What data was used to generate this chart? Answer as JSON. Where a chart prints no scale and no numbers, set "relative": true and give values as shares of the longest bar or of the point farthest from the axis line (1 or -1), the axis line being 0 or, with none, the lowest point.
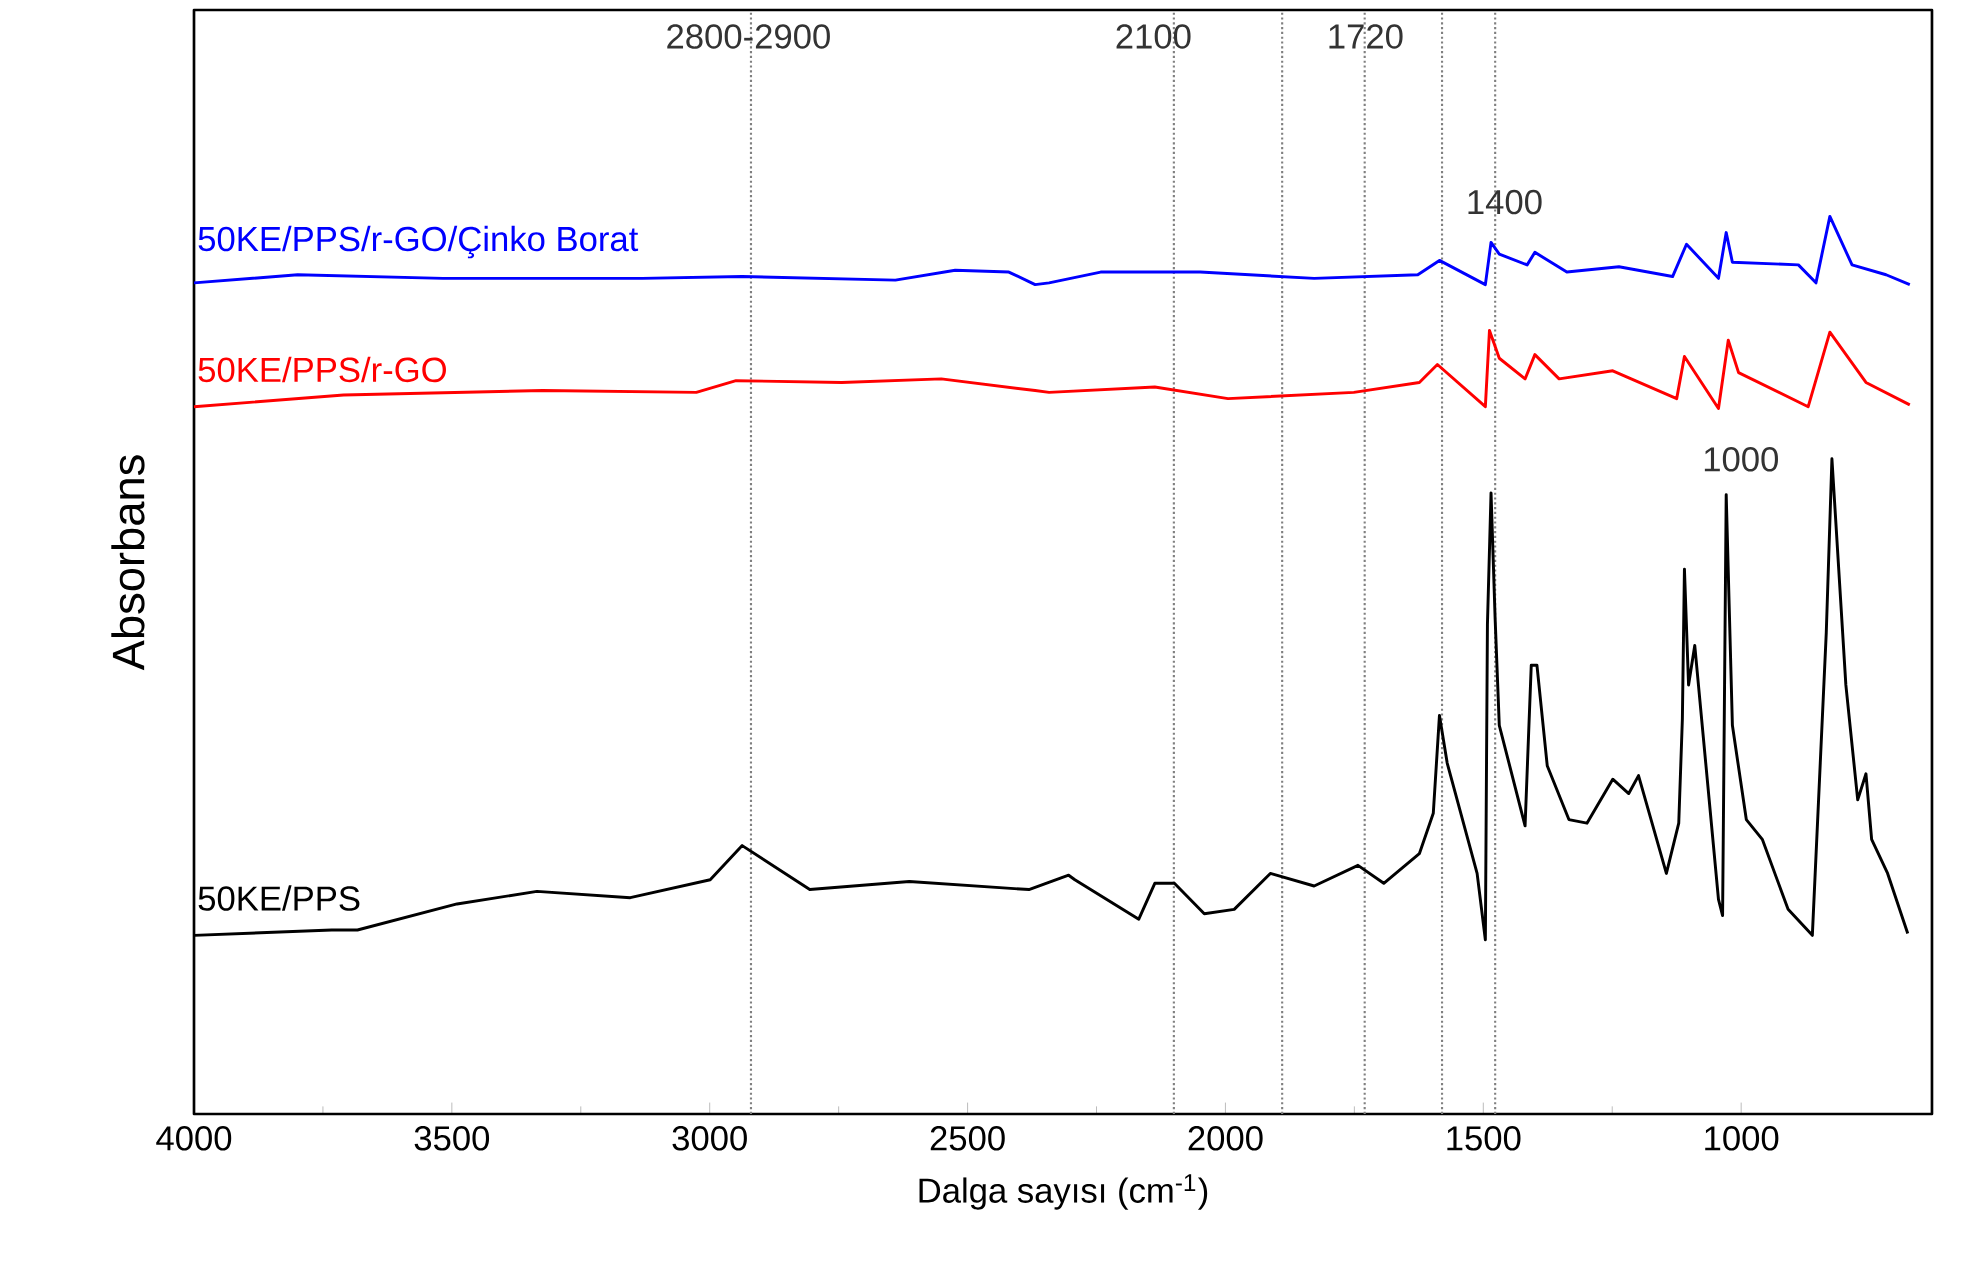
{
  "chart_data": {
    "type": "line",
    "relative": true,
    "xlabel": "Dalga sayısı (cm$^{-1}$)",
    "ylabel": "Absorbans",
    "xlim": [
      4000,
      630
    ],
    "xticks": [
      4000,
      3500,
      3000,
      2500,
      2000,
      1500,
      1000
    ],
    "legend": false,
    "grid": false,
    "line_style": "solid",
    "marker": "none",
    "series": [
      {
        "name": "50KE/PPS/r-GO/Çinko Borat",
        "color": "#0000ff",
        "x": [
          4000,
          3799,
          3517,
          3131,
          2937,
          2640,
          2524,
          2420,
          2369,
          2342,
          2242,
          2049,
          1828,
          1627,
          1585,
          1496,
          1485,
          1469,
          1415,
          1400,
          1338,
          1237,
          1133,
          1106,
          1044,
          1029,
          1017,
          889,
          855,
          828,
          785,
          719,
          673
        ],
        "values": [
          0.926,
          0.935,
          0.931,
          0.931,
          0.933,
          0.929,
          0.94,
          0.938,
          0.924,
          0.926,
          0.938,
          0.938,
          0.931,
          0.935,
          0.951,
          0.924,
          0.971,
          0.958,
          0.946,
          0.96,
          0.938,
          0.944,
          0.933,
          0.969,
          0.931,
          0.982,
          0.949,
          0.946,
          0.926,
          1.0,
          0.946,
          0.935,
          0.924
        ]
      },
      {
        "name": "50KE/PPS/r-GO",
        "color": "#ff0000",
        "x": [
          4000,
          3710,
          3324,
          3026,
          2949,
          2744,
          2551,
          2369,
          2342,
          2137,
          1995,
          1751,
          1624,
          1589,
          1496,
          1488,
          1469,
          1419,
          1400,
          1353,
          1249,
          1125,
          1110,
          1044,
          1025,
          1005,
          870,
          828,
          758,
          673
        ],
        "values": [
          0.788,
          0.801,
          0.806,
          0.804,
          0.817,
          0.815,
          0.819,
          0.806,
          0.804,
          0.81,
          0.797,
          0.804,
          0.815,
          0.835,
          0.788,
          0.873,
          0.842,
          0.819,
          0.846,
          0.819,
          0.828,
          0.797,
          0.844,
          0.786,
          0.862,
          0.826,
          0.788,
          0.871,
          0.815,
          0.79
        ]
      },
      {
        "name": "50KE/PPS",
        "color": "#000000",
        "x": [
          4000,
          3733,
          3683,
          3490,
          3335,
          3154,
          2999,
          2937,
          2806,
          2613,
          2381,
          2304,
          2292,
          2168,
          2137,
          2099,
          2041,
          1983,
          1913,
          1828,
          1743,
          1693,
          1624,
          1597,
          1585,
          1570,
          1512,
          1496,
          1492,
          1485,
          1477,
          1469,
          1419,
          1407,
          1396,
          1376,
          1334,
          1299,
          1249,
          1218,
          1199,
          1145,
          1121,
          1114,
          1110,
          1102,
          1090,
          1044,
          1036,
          1029,
          1017,
          990,
          959,
          909,
          862,
          835,
          824,
          797,
          774,
          758,
          747,
          716,
          677
        ],
        "values": [
          0.199,
          0.205,
          0.205,
          0.234,
          0.248,
          0.241,
          0.261,
          0.299,
          0.25,
          0.259,
          0.25,
          0.266,
          0.261,
          0.217,
          0.257,
          0.257,
          0.223,
          0.228,
          0.268,
          0.254,
          0.277,
          0.257,
          0.29,
          0.335,
          0.444,
          0.391,
          0.268,
          0.194,
          0.545,
          0.692,
          0.551,
          0.433,
          0.321,
          0.5,
          0.5,
          0.388,
          0.328,
          0.324,
          0.373,
          0.357,
          0.377,
          0.268,
          0.324,
          0.44,
          0.607,
          0.478,
          0.522,
          0.239,
          0.221,
          0.69,
          0.433,
          0.328,
          0.306,
          0.228,
          0.199,
          0.536,
          0.73,
          0.478,
          0.35,
          0.379,
          0.306,
          0.268,
          0.201
        ]
      }
    ],
    "ref_lines": [
      {
        "axis": "x",
        "value": 2920,
        "label": null,
        "color": "#808080",
        "line_style": "dotted"
      },
      {
        "axis": "x",
        "value": 2100,
        "label": null,
        "color": "#808080",
        "line_style": "dotted"
      },
      {
        "axis": "x",
        "value": 1890,
        "label": null,
        "color": "#808080",
        "line_style": "dotted"
      },
      {
        "axis": "x",
        "value": 1730,
        "label": null,
        "color": "#808080",
        "line_style": "dotted"
      },
      {
        "axis": "x",
        "value": 1580,
        "label": null,
        "color": "#808080",
        "line_style": "dotted"
      },
      {
        "axis": "x",
        "value": 1477,
        "label": null,
        "color": "#808080",
        "line_style": "dotted"
      }
    ],
    "annotations": [
      "2800-2900",
      "2100",
      "1720",
      "1400",
      "1000"
    ]
  }
}
